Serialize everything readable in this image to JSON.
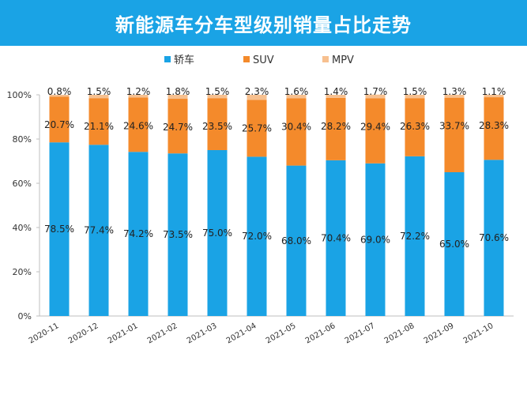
{
  "title": "新能源车分车型级别销量占比走势",
  "colors": {
    "sedan": "#1aa3e5",
    "suv": "#f48a2b",
    "mpv": "#f7c08f",
    "banner": "#1aa3e5"
  },
  "chart_data": {
    "type": "bar",
    "stacked": true,
    "categories": [
      "2020-11",
      "2020-12",
      "2021-01",
      "2021-02",
      "2021-03",
      "2021-04",
      "2021-05",
      "2021-06",
      "2021-07",
      "2021-08",
      "2021-09",
      "2021-10"
    ],
    "series": [
      {
        "name": "轿车",
        "values": [
          78.5,
          77.4,
          74.2,
          73.5,
          75.0,
          72.0,
          68.0,
          70.4,
          69.0,
          72.2,
          65.0,
          70.6
        ],
        "labels": [
          "78.5%",
          "77.4%",
          "74.2%",
          "73.5%",
          "75.0%",
          "72.0%",
          "68.0%",
          "70.4%",
          "69.0%",
          "72.2%",
          "65.0%",
          "70.6%"
        ]
      },
      {
        "name": "SUV",
        "values": [
          20.7,
          21.1,
          24.6,
          24.7,
          23.5,
          25.7,
          30.4,
          28.2,
          29.4,
          26.3,
          33.7,
          28.3
        ],
        "labels": [
          "20.7%",
          "21.1%",
          "24.6%",
          "24.7%",
          "23.5%",
          "25.7%",
          "30.4%",
          "28.2%",
          "29.4%",
          "26.3%",
          "33.7%",
          "28.3%"
        ]
      },
      {
        "name": "MPV",
        "values": [
          0.8,
          1.5,
          1.2,
          1.8,
          1.5,
          2.3,
          1.6,
          1.4,
          1.7,
          1.5,
          1.3,
          1.1
        ],
        "labels": [
          "0.8%",
          "1.5%",
          "1.2%",
          "1.8%",
          "1.5%",
          "2.3%",
          "1.6%",
          "1.4%",
          "1.7%",
          "1.5%",
          "1.3%",
          "1.1%"
        ]
      }
    ],
    "ylim": [
      0,
      100
    ],
    "yticks": [
      "0%",
      "20%",
      "40%",
      "60%",
      "80%",
      "100%"
    ],
    "grid": false,
    "legend_position": "top-center"
  }
}
